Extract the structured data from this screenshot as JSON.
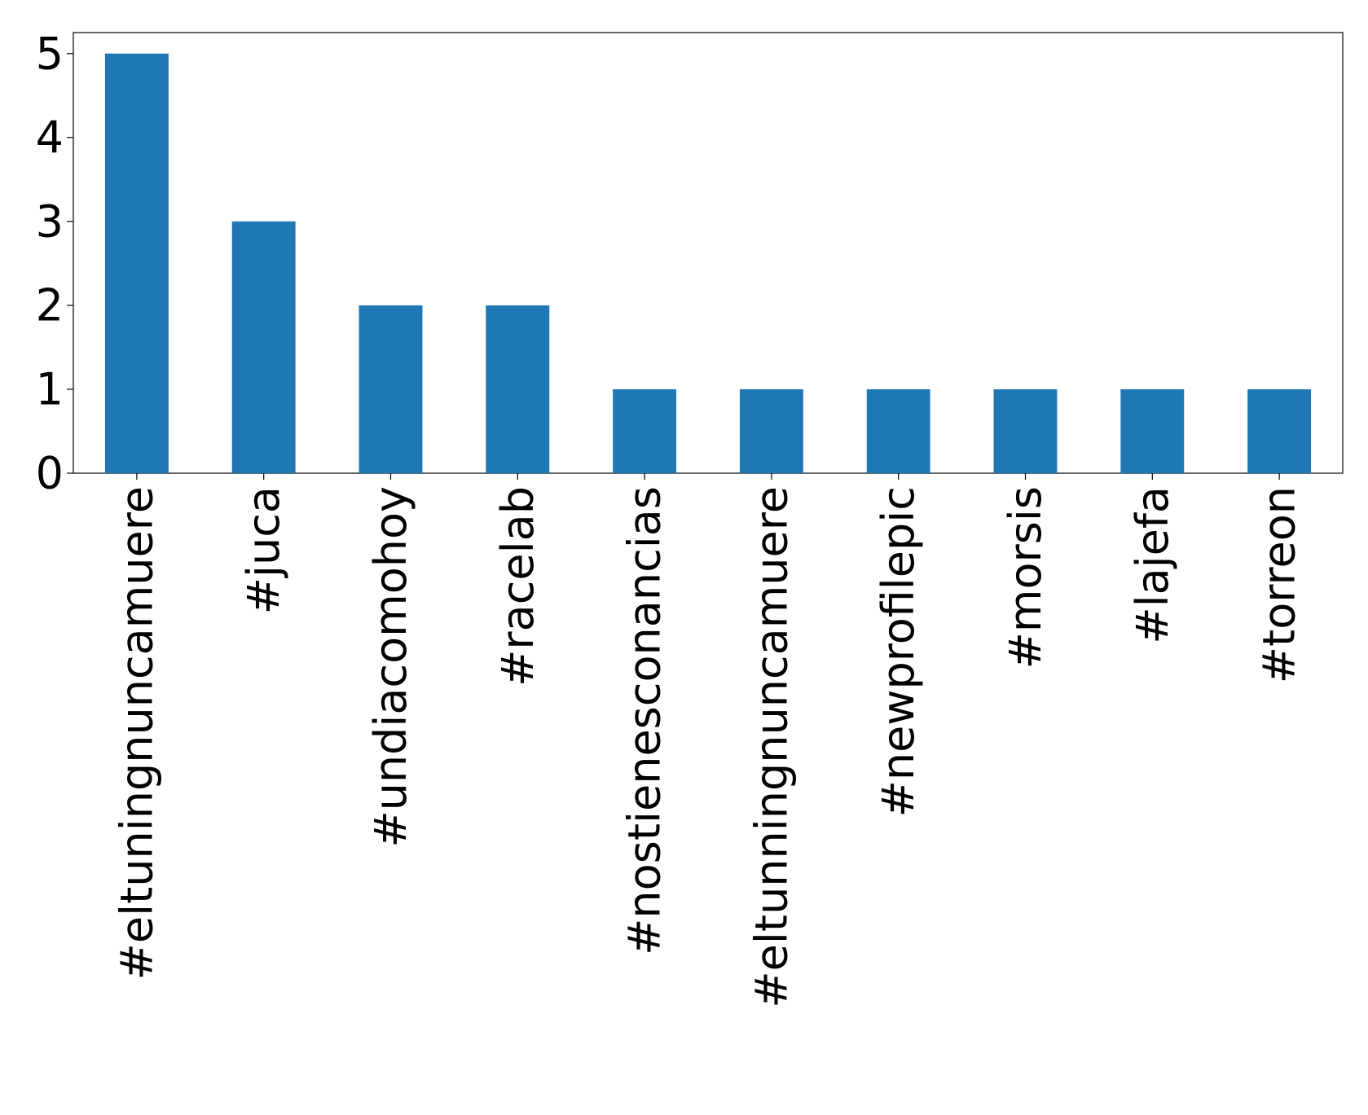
{
  "chart_data": {
    "type": "bar",
    "categories": [
      "#eltuningnuncamuere",
      "#juca",
      "#undiacomohoy",
      "#racelab",
      "#nostienesconancias",
      "#eltunningnuncamuere",
      "#newprofilepic",
      "#morsis",
      "#lajefa",
      "#torreon"
    ],
    "values": [
      5,
      3,
      2,
      2,
      1,
      1,
      1,
      1,
      1,
      1
    ],
    "color": "#1f77b4",
    "ylim": [
      0,
      5.25
    ],
    "yticks": [
      0,
      1,
      2,
      3,
      4,
      5
    ],
    "grid": false
  }
}
